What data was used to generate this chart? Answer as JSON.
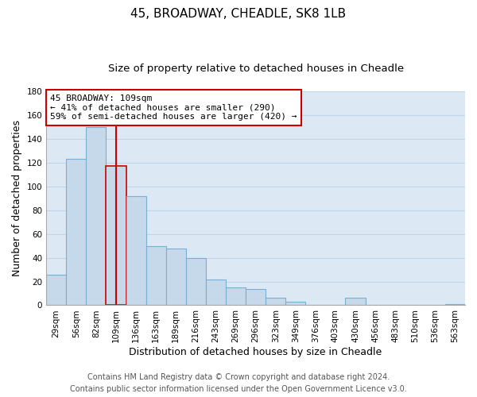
{
  "title": "45, BROADWAY, CHEADLE, SK8 1LB",
  "subtitle": "Size of property relative to detached houses in Cheadle",
  "xlabel": "Distribution of detached houses by size in Cheadle",
  "ylabel": "Number of detached properties",
  "bar_labels": [
    "29sqm",
    "56sqm",
    "82sqm",
    "109sqm",
    "136sqm",
    "163sqm",
    "189sqm",
    "216sqm",
    "243sqm",
    "269sqm",
    "296sqm",
    "323sqm",
    "349sqm",
    "376sqm",
    "403sqm",
    "430sqm",
    "456sqm",
    "483sqm",
    "510sqm",
    "536sqm",
    "563sqm"
  ],
  "bar_values": [
    26,
    123,
    150,
    117,
    92,
    50,
    48,
    40,
    22,
    15,
    14,
    6,
    3,
    0,
    0,
    6,
    0,
    0,
    0,
    0,
    1
  ],
  "bar_color": "#c5d9ea",
  "bar_edge_color": "#7aafd4",
  "highlight_bar_index": 3,
  "highlight_bar_edge_color": "#cc0000",
  "vline_x": 3,
  "vline_color": "#cc0000",
  "ylim": [
    0,
    180
  ],
  "yticks": [
    0,
    20,
    40,
    60,
    80,
    100,
    120,
    140,
    160,
    180
  ],
  "annotation_line1": "45 BROADWAY: 109sqm",
  "annotation_line2": "← 41% of detached houses are smaller (290)",
  "annotation_line3": "59% of semi-detached houses are larger (420) →",
  "annotation_box_color": "#ffffff",
  "annotation_box_edgecolor": "#cc0000",
  "footer_line1": "Contains HM Land Registry data © Crown copyright and database right 2024.",
  "footer_line2": "Contains public sector information licensed under the Open Government Licence v3.0.",
  "background_color": "#ffffff",
  "plot_bg_color": "#dce9f5",
  "grid_color": "#c0d4e8",
  "title_fontsize": 11,
  "subtitle_fontsize": 9.5,
  "axis_label_fontsize": 9,
  "tick_fontsize": 7.5,
  "annotation_fontsize": 8,
  "footer_fontsize": 7
}
